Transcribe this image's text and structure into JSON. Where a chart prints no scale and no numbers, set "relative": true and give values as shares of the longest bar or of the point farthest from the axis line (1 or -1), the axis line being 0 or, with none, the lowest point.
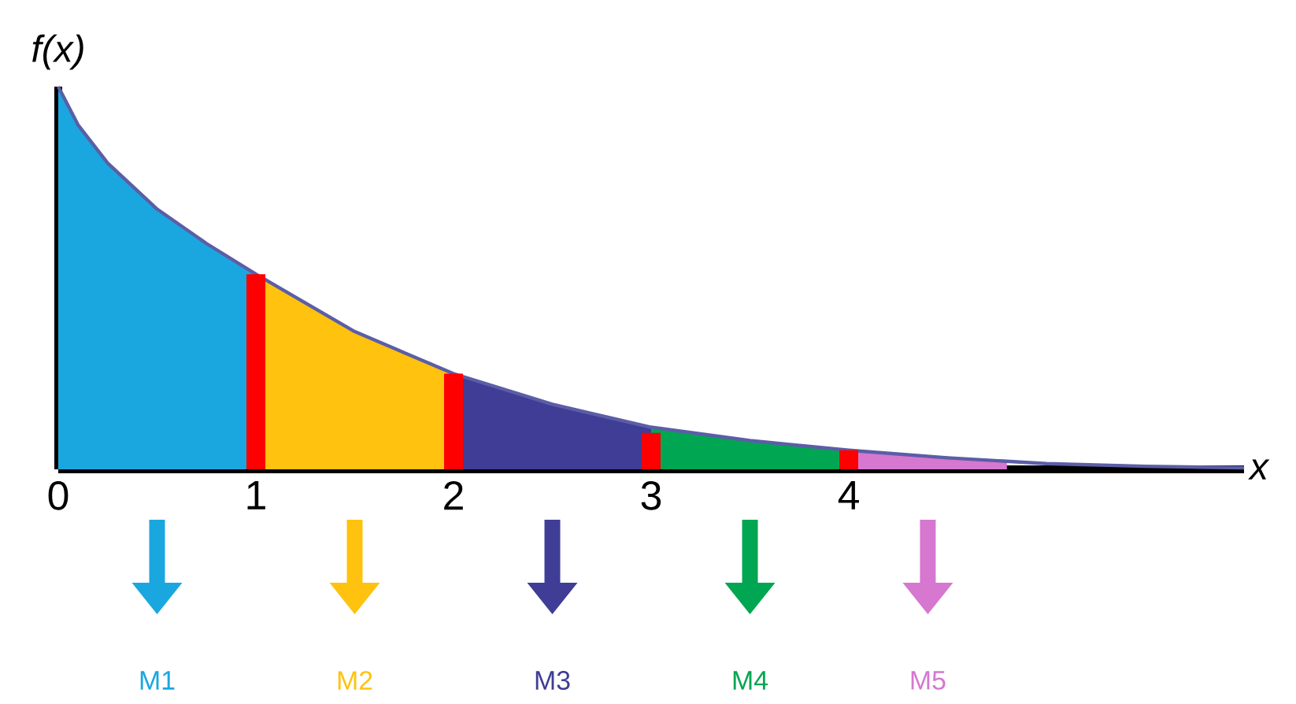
{
  "chart_data": {
    "type": "line",
    "relative": true,
    "xlabel": "x",
    "ylabel": "f(x)",
    "xlim": [
      0,
      6
    ],
    "xticks": [
      0,
      1,
      2,
      3,
      4
    ],
    "series": [
      {
        "type": "area",
        "name": "M1",
        "color": "#1aa7e0",
        "x": [
          0,
          0.1,
          0.25,
          0.5,
          0.75,
          1
        ],
        "values": [
          1,
          0.9,
          0.8,
          0.68,
          0.59,
          0.51
        ]
      },
      {
        "type": "area",
        "name": "M2",
        "color": "#ffc20e",
        "x": [
          1,
          1.5,
          2
        ],
        "values": [
          0.51,
          0.36,
          0.25
        ]
      },
      {
        "type": "area",
        "name": "M3",
        "color": "#3f3d96",
        "x": [
          2,
          2.5,
          3
        ],
        "values": [
          0.25,
          0.17,
          0.11
        ]
      },
      {
        "type": "area",
        "name": "M4",
        "color": "#00a651",
        "x": [
          3,
          3.5,
          4
        ],
        "values": [
          0.11,
          0.075,
          0.05
        ]
      },
      {
        "type": "area",
        "name": "M5",
        "color": "#d677d0",
        "x": [
          4,
          4.5,
          4.8
        ],
        "values": [
          0.05,
          0.03,
          0.022
        ]
      },
      {
        "color": "#5b5ea6",
        "x": [
          0,
          0.1,
          0.25,
          0.5,
          0.75,
          1,
          1.5,
          2,
          2.5,
          3,
          3.5,
          4,
          4.5,
          5,
          5.5,
          6
        ],
        "values": [
          1,
          0.9,
          0.8,
          0.68,
          0.59,
          0.51,
          0.36,
          0.25,
          0.17,
          0.11,
          0.075,
          0.05,
          0.03,
          0.015,
          0.008,
          0.004
        ]
      },
      {
        "type": "bar",
        "color": "#ff0000",
        "x": [
          1,
          2,
          3,
          4
        ],
        "values": [
          0.51,
          0.25,
          0.095,
          0.05
        ]
      }
    ]
  }
}
